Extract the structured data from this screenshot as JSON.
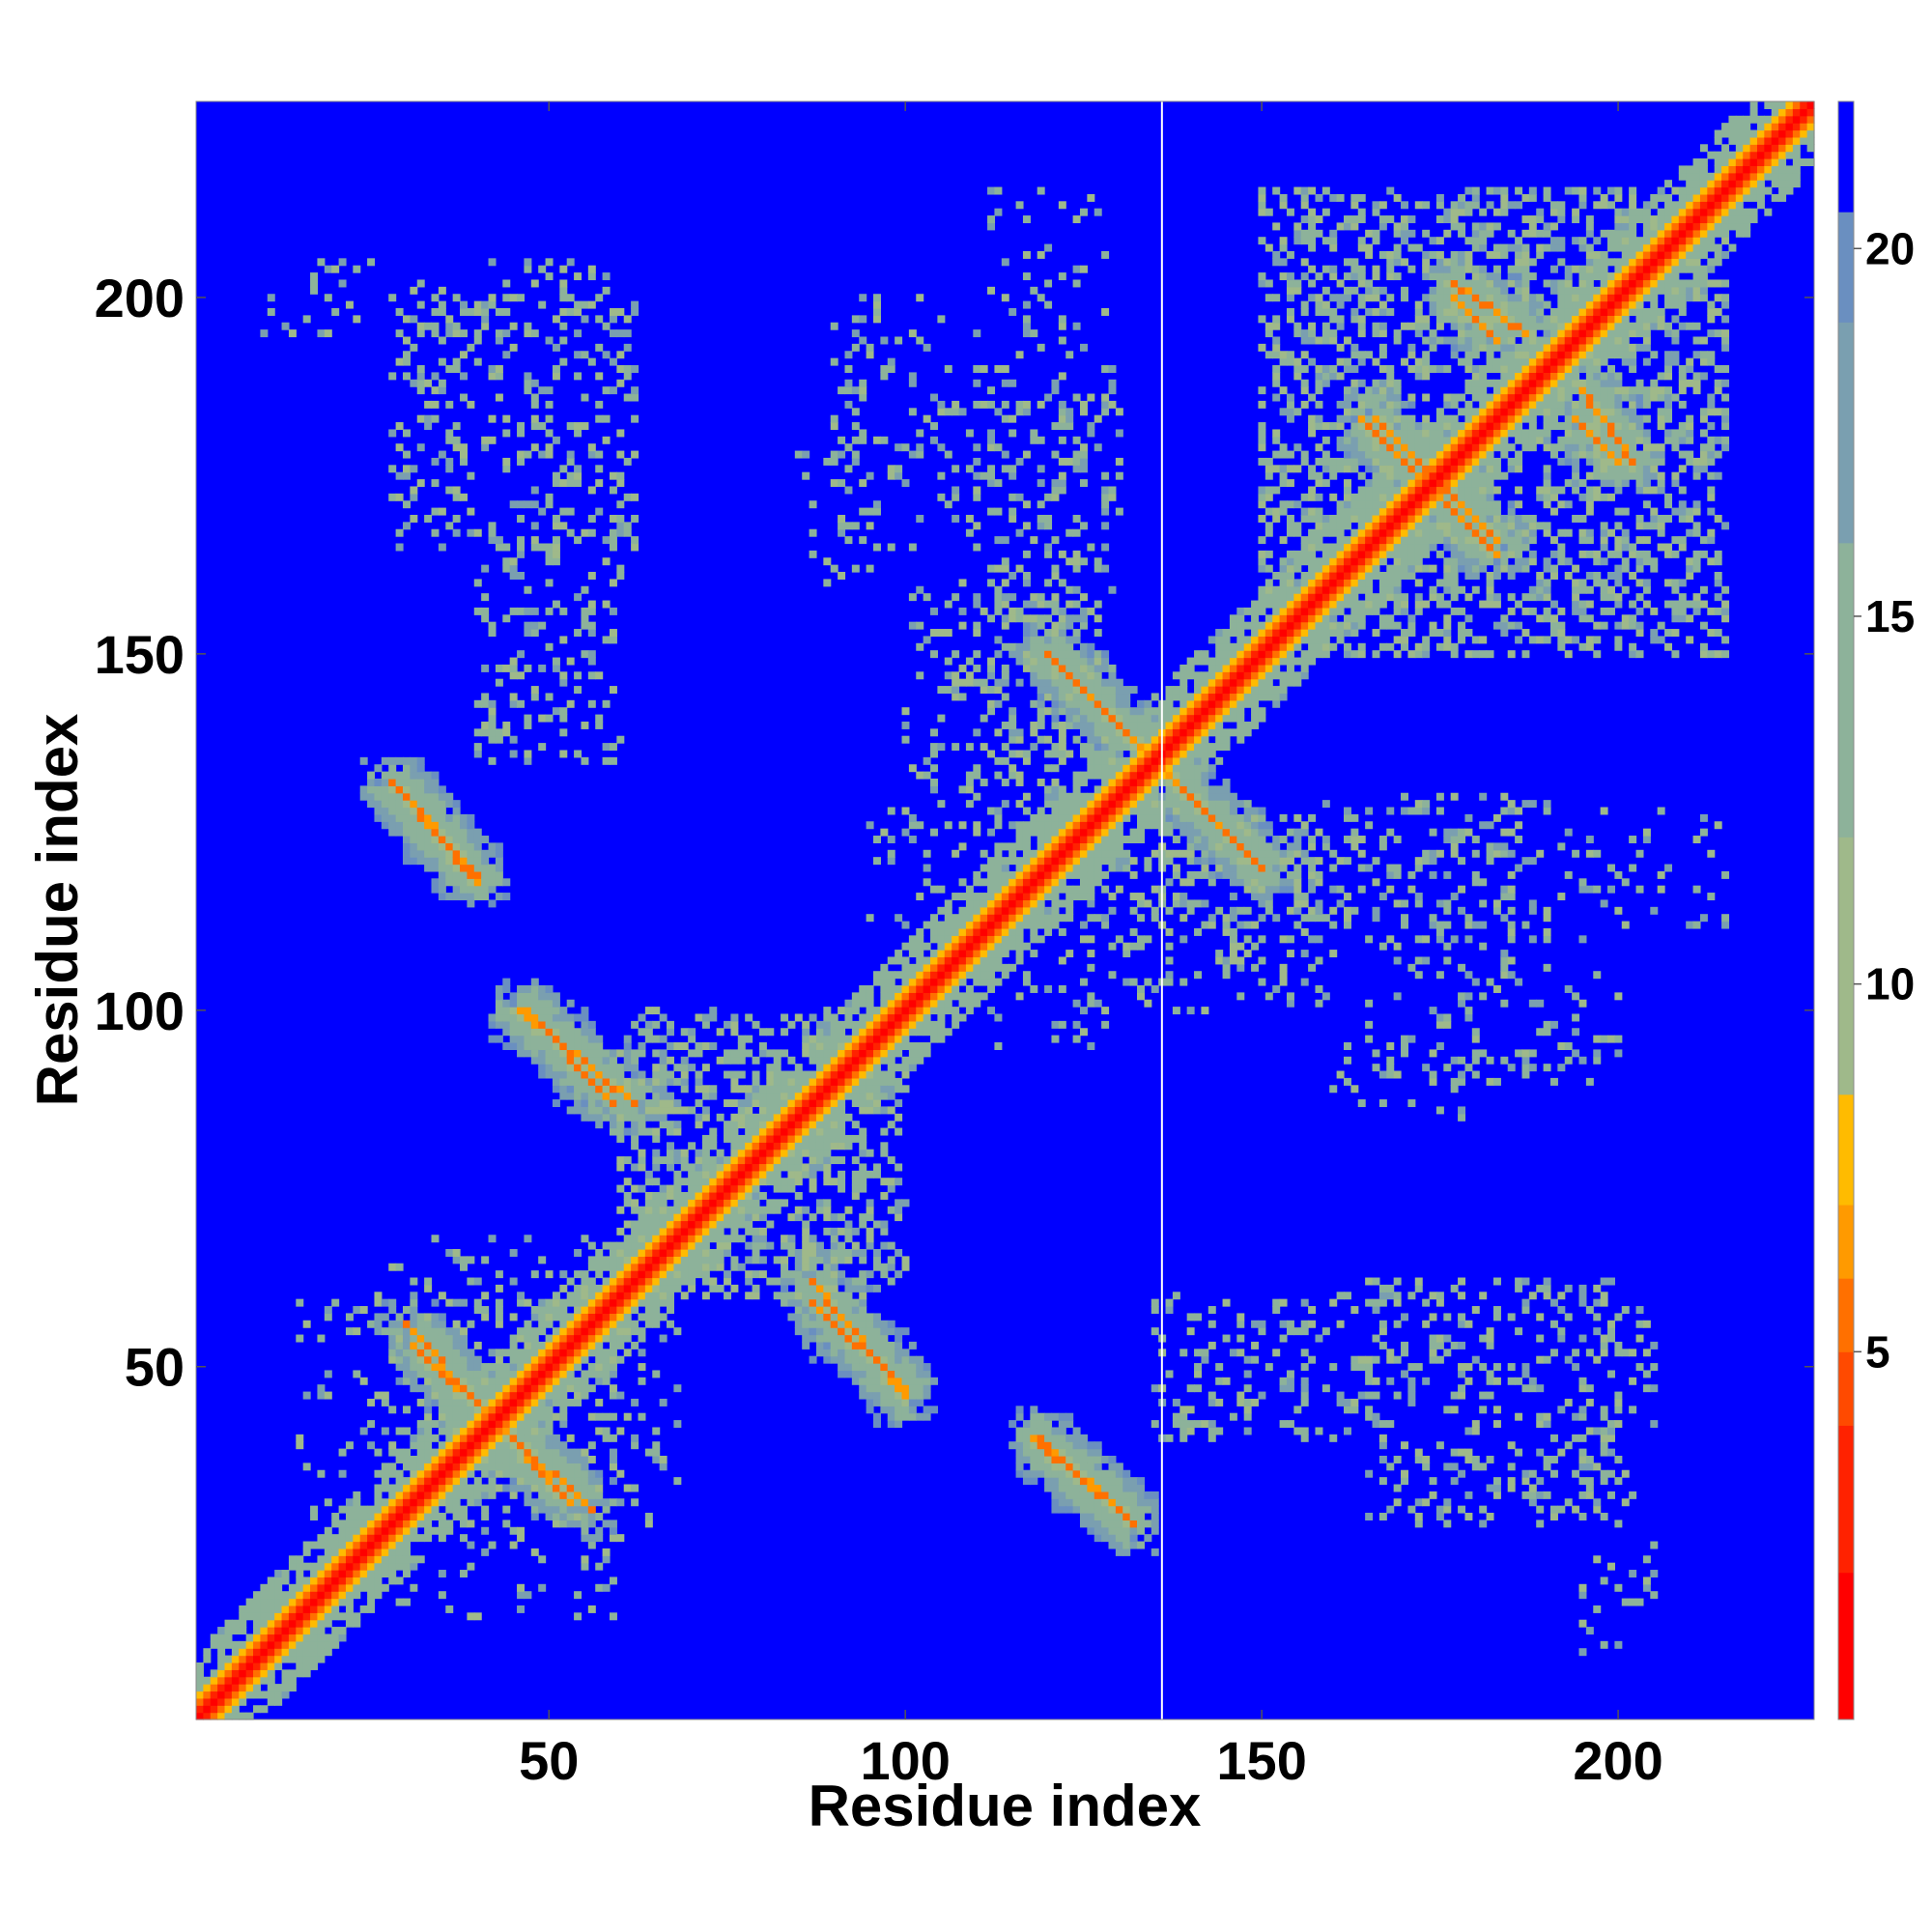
{
  "chart_data": {
    "type": "heatmap",
    "title": "",
    "xlabel": "Residue index",
    "ylabel": "Residue index",
    "x_range": [
      1,
      227
    ],
    "y_range": [
      1,
      227
    ],
    "x_ticks": [
      50,
      100,
      150,
      200
    ],
    "y_ticks": [
      50,
      100,
      150,
      200
    ],
    "grid": false,
    "legend": "colorbar-right",
    "colorbar": {
      "range": [
        0,
        22
      ],
      "ticks": [
        5,
        10,
        15,
        20
      ],
      "colors": [
        "#ff0000",
        "#ff2200",
        "#ff4a00",
        "#ff7000",
        "#ff9a00",
        "#ffbb00",
        "#9fb98a",
        "#8db29a",
        "#7a9fb0",
        "#6a8fc0",
        "#0000ff"
      ],
      "levels": [
        0,
        2,
        4,
        5,
        6,
        7,
        8.5,
        12,
        16,
        19,
        20.5,
        22
      ]
    },
    "max_distance_shown": 20,
    "background_value": 22,
    "marker_line_x": 136,
    "diagonal": {
      "from": 1,
      "to": 227
    },
    "contacts": [
      {
        "i": 41,
        "j": 41,
        "value": 0,
        "note": "cross center"
      },
      {
        "segment": [
          [
            30,
            56
          ],
          [
            40,
            45
          ]
        ],
        "value": 5
      },
      {
        "segment": [
          [
            41,
            44
          ],
          [
            53,
            31
          ]
        ],
        "value": 5
      },
      {
        "segment": [
          [
            47,
            100
          ],
          [
            59,
            87
          ]
        ],
        "value": 5
      },
      {
        "segment": [
          [
            87,
            62
          ],
          [
            100,
            46
          ]
        ],
        "value": 5
      },
      {
        "segment": [
          [
            29,
            131
          ],
          [
            40,
            118
          ]
        ],
        "value": 5
      },
      {
        "segment": [
          [
            119,
            40
          ],
          [
            132,
            28
          ]
        ],
        "value": 5
      },
      {
        "segment": [
          [
            120,
            150
          ],
          [
            133,
            137
          ]
        ],
        "value": 5
      },
      {
        "segment": [
          [
            137,
            133
          ],
          [
            150,
            120
          ]
        ],
        "value": 5
      },
      {
        "segment": [
          [
            177,
            200
          ],
          [
            183,
            194
          ]
        ],
        "value": 5
      },
      {
        "segment": [
          [
            166,
            183
          ],
          [
            177,
            172
          ]
        ],
        "value": 5
      },
      {
        "segment": [
          [
            175,
            172
          ],
          [
            183,
            164
          ]
        ],
        "value": 5
      },
      {
        "segment": [
          [
            195,
            187
          ],
          [
            202,
            177
          ]
        ],
        "value": 5
      }
    ]
  }
}
